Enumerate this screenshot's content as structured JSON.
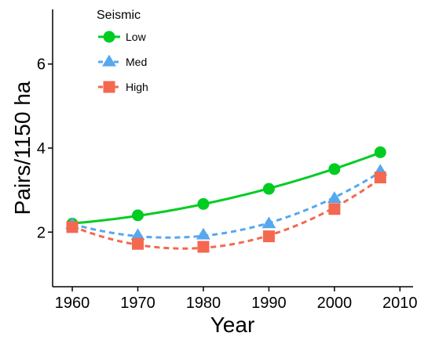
{
  "chart_data": {
    "type": "line",
    "xlabel": "Year",
    "ylabel": "Pairs/1150 ha",
    "xlim": [
      1957,
      2012
    ],
    "ylim": [
      0.7,
      7.3
    ],
    "xticks": [
      1960,
      1970,
      1980,
      1990,
      2000,
      2010
    ],
    "yticks": [
      2,
      4,
      6
    ],
    "grid": false,
    "legend": {
      "title": "Seismic",
      "position": "top-left"
    },
    "series": [
      {
        "name": "Low",
        "color": "#00cc22",
        "marker": "circle",
        "line_style": "solid",
        "x": [
          1960,
          1970,
          1980,
          1990,
          2000,
          2007
        ],
        "y": [
          2.2,
          2.4,
          2.67,
          3.03,
          3.5,
          3.9
        ]
      },
      {
        "name": "Med",
        "color": "#56a8ef",
        "marker": "triangle",
        "line_style": "dashed",
        "x": [
          1960,
          1970,
          1980,
          1990,
          2000,
          2007
        ],
        "y": [
          2.18,
          1.92,
          1.93,
          2.2,
          2.8,
          3.45
        ]
      },
      {
        "name": "High",
        "color": "#f4684f",
        "marker": "square",
        "line_style": "dashed",
        "x": [
          1960,
          1970,
          1980,
          1990,
          2000,
          2007
        ],
        "y": [
          2.12,
          1.72,
          1.65,
          1.9,
          2.55,
          3.3
        ]
      }
    ]
  }
}
